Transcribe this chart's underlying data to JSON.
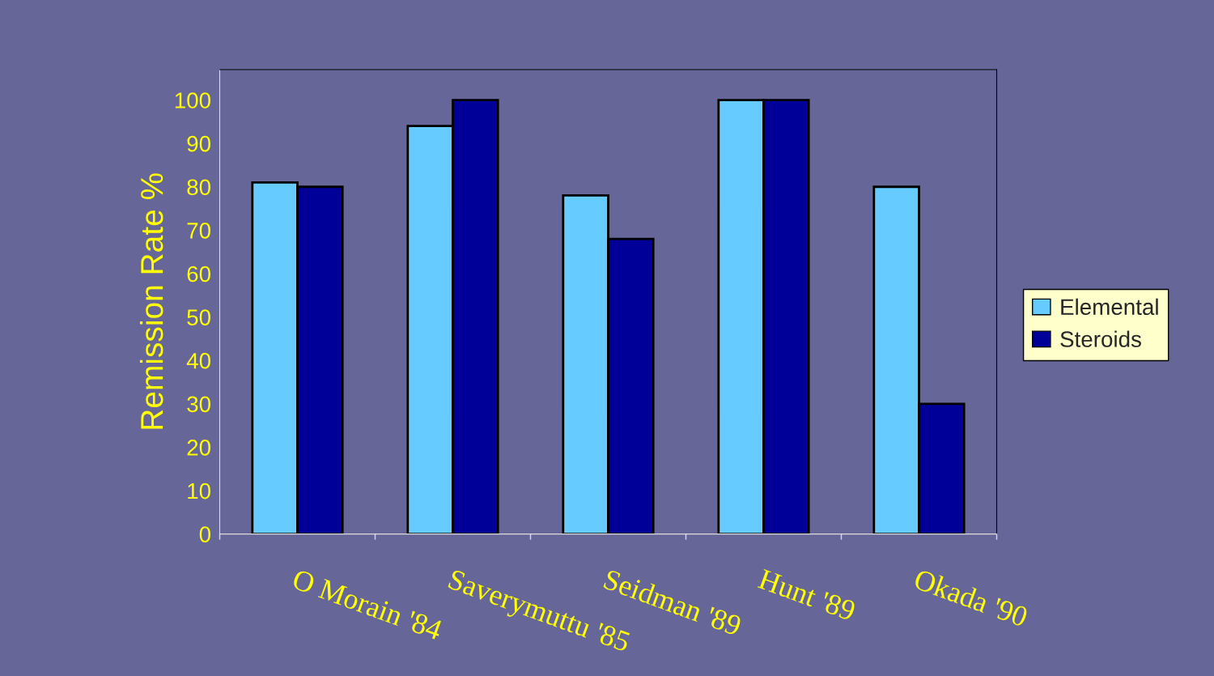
{
  "chart_data": {
    "type": "bar",
    "ylabel": "Remission Rate %",
    "categories": [
      "O Morain '84",
      "Saverymuttu '85",
      "Seidman '89",
      "Hunt '89",
      "Okada '90"
    ],
    "series": [
      {
        "name": "Elemental",
        "color": "#66ccff",
        "values": [
          81,
          94,
          78,
          100,
          80
        ]
      },
      {
        "name": "Steroids",
        "color": "#000099",
        "values": [
          80,
          100,
          68,
          100,
          30
        ]
      }
    ],
    "ylim": [
      0,
      107
    ],
    "yticks": [
      0,
      10,
      20,
      30,
      40,
      50,
      60,
      70,
      80,
      90,
      100
    ],
    "grid": false,
    "legend": "right"
  }
}
